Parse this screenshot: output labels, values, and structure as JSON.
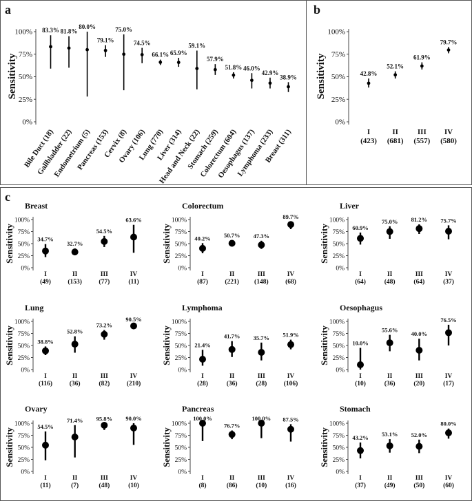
{
  "panel_letters": {
    "a": "a",
    "b": "b",
    "c": "c"
  },
  "colors": {
    "mark": "#000000",
    "border": "#555555",
    "axis": "#555555"
  },
  "chart_data": [
    {
      "id": "a",
      "type": "scatter",
      "error_bars": true,
      "title": "",
      "xlabel": "",
      "ylabel": "Sensitivity",
      "ylim": [
        0,
        100
      ],
      "yticks": [
        "0%",
        "25%",
        "50%",
        "75%",
        "100%"
      ],
      "categories": [
        "Bile Duct (18)",
        "Gallbladder (22)",
        "Endometrium (5)",
        "Pancreas (153)",
        "Cervix (8)",
        "Ovary (106)",
        "Lung (770)",
        "Liver (314)",
        "Head and Neck (22)",
        "Stomach (259)",
        "Colorectum (604)",
        "Oesophagus (137)",
        "Lymphoma (233)",
        "Breast (311)"
      ],
      "labels": [
        "83.3%",
        "81.8%",
        "80.0%",
        "79.1%",
        "75.0%",
        "74.5%",
        "66.1%",
        "65.9%",
        "59.1%",
        "57.9%",
        "51.8%",
        "46.0%",
        "42.9%",
        "38.9%"
      ],
      "values": [
        83.3,
        81.8,
        80.0,
        79.1,
        75.0,
        74.5,
        66.1,
        65.9,
        59.1,
        57.9,
        51.8,
        46.0,
        42.9,
        38.9
      ],
      "lower": [
        59,
        60,
        28,
        72,
        35,
        65,
        63,
        61,
        36,
        52,
        48,
        37,
        37,
        33
      ],
      "upper": [
        96,
        95,
        100,
        85,
        97,
        82,
        69,
        71,
        79,
        64,
        55,
        54,
        49,
        44
      ]
    },
    {
      "id": "b",
      "type": "scatter",
      "error_bars": true,
      "title": "",
      "xlabel": "",
      "ylabel": "Sensitivity",
      "ylim": [
        0,
        100
      ],
      "yticks": [
        "0%",
        "25%",
        "50%",
        "75%",
        "100%"
      ],
      "categories": [
        "I",
        "II",
        "III",
        "IV"
      ],
      "counts": [
        "(423)",
        "(681)",
        "(557)",
        "(580)"
      ],
      "labels": [
        "42.8%",
        "52.1%",
        "61.9%",
        "79.7%"
      ],
      "values": [
        42.8,
        52.1,
        61.9,
        79.7
      ],
      "lower": [
        38,
        48,
        58,
        76
      ],
      "upper": [
        48,
        56,
        66,
        83
      ]
    },
    {
      "id": "c-breast",
      "type": "scatter",
      "error_bars": true,
      "title": "Breast",
      "ylabel": "Sensitivity",
      "ylim": [
        0,
        100
      ],
      "yticks": [
        "0%",
        "25%",
        "50%",
        "75%",
        "100%"
      ],
      "categories": [
        "I",
        "II",
        "III",
        "IV"
      ],
      "counts": [
        "(49)",
        "(153)",
        "(77)",
        "(11)"
      ],
      "labels": [
        "34.7%",
        "32.7%",
        "54.5%",
        "63.6%"
      ],
      "values": [
        34.7,
        32.7,
        54.5,
        63.6
      ],
      "lower": [
        22,
        26,
        43,
        31
      ],
      "upper": [
        49,
        40,
        66,
        89
      ]
    },
    {
      "id": "c-colorectum",
      "type": "scatter",
      "error_bars": true,
      "title": "Colorectum",
      "ylabel": "Sensitivity",
      "ylim": [
        0,
        100
      ],
      "yticks": [
        "0%",
        "25%",
        "50%",
        "75%",
        "100%"
      ],
      "categories": [
        "I",
        "II",
        "III",
        "IV"
      ],
      "counts": [
        "(87)",
        "(221)",
        "(148)",
        "(68)"
      ],
      "labels": [
        "40.2%",
        "50.7%",
        "47.3%",
        "89.7%"
      ],
      "values": [
        40.2,
        50.7,
        47.3,
        89.7
      ],
      "lower": [
        30,
        44,
        39,
        80
      ],
      "upper": [
        51,
        57,
        56,
        96
      ]
    },
    {
      "id": "c-liver",
      "type": "scatter",
      "error_bars": true,
      "title": "Liver",
      "ylabel": "Sensitivity",
      "ylim": [
        0,
        100
      ],
      "yticks": [
        "0%",
        "25%",
        "50%",
        "75%",
        "100%"
      ],
      "categories": [
        "I",
        "II",
        "III",
        "IV"
      ],
      "counts": [
        "(64)",
        "(48)",
        "(64)",
        "(37)"
      ],
      "labels": [
        "60.9%",
        "75.0%",
        "81.2%",
        "75.7%"
      ],
      "values": [
        60.9,
        75.0,
        81.2,
        75.7
      ],
      "lower": [
        48,
        60,
        70,
        59
      ],
      "upper": [
        73,
        86,
        90,
        88
      ]
    },
    {
      "id": "c-lung",
      "type": "scatter",
      "error_bars": true,
      "title": "Lung",
      "ylabel": "Sensitivity",
      "ylim": [
        0,
        100
      ],
      "yticks": [
        "0%",
        "25%",
        "50%",
        "75%",
        "100%"
      ],
      "categories": [
        "I",
        "II",
        "III",
        "IV"
      ],
      "counts": [
        "(116)",
        "(36)",
        "(82)",
        "(210)"
      ],
      "labels": [
        "38.8%",
        "52.8%",
        "73.2%",
        "90.5%"
      ],
      "values": [
        38.8,
        52.8,
        73.2,
        90.5
      ],
      "lower": [
        30,
        35,
        62,
        86
      ],
      "upper": [
        48,
        69,
        82,
        94
      ]
    },
    {
      "id": "c-lymphoma",
      "type": "scatter",
      "error_bars": true,
      "title": "Lymphoma",
      "ylabel": "Sensitivity",
      "ylim": [
        0,
        100
      ],
      "yticks": [
        "0%",
        "25%",
        "50%",
        "75%",
        "100%"
      ],
      "categories": [
        "I",
        "II",
        "III",
        "IV"
      ],
      "counts": [
        "(28)",
        "(36)",
        "(28)",
        "(106)"
      ],
      "labels": [
        "21.4%",
        "41.7%",
        "35.7%",
        "51.9%"
      ],
      "values": [
        21.4,
        41.7,
        35.7,
        51.9
      ],
      "lower": [
        8,
        26,
        19,
        42
      ],
      "upper": [
        41,
        59,
        56,
        62
      ]
    },
    {
      "id": "c-oesophagus",
      "type": "scatter",
      "error_bars": true,
      "title": "Oesophagus",
      "ylabel": "Sensitivity",
      "ylim": [
        0,
        100
      ],
      "yticks": [
        "0%",
        "25%",
        "50%",
        "75%",
        "100%"
      ],
      "categories": [
        "I",
        "II",
        "III",
        "IV"
      ],
      "counts": [
        "(10)",
        "(36)",
        "(20)",
        "(17)"
      ],
      "labels": [
        "10.0%",
        "55.6%",
        "40.0%",
        "76.5%"
      ],
      "values": [
        10.0,
        55.6,
        40.0,
        76.5
      ],
      "lower": [
        0,
        38,
        19,
        50
      ],
      "upper": [
        45,
        72,
        64,
        93
      ]
    },
    {
      "id": "c-ovary",
      "type": "scatter",
      "error_bars": true,
      "title": "Ovary",
      "ylabel": "Sensitivity",
      "ylim": [
        0,
        100
      ],
      "yticks": [
        "0%",
        "25%",
        "50%",
        "75%",
        "100%"
      ],
      "categories": [
        "I",
        "II",
        "III",
        "IV"
      ],
      "counts": [
        "(11)",
        "(7)",
        "(48)",
        "(10)"
      ],
      "labels": [
        "54.5%",
        "71.4%",
        "95.8%",
        "90.0%"
      ],
      "values": [
        54.5,
        71.4,
        95.8,
        90.0
      ],
      "lower": [
        23,
        29,
        86,
        55
      ],
      "upper": [
        83,
        96,
        99,
        100
      ]
    },
    {
      "id": "c-pancreas",
      "type": "scatter",
      "error_bars": true,
      "title": "Pancreas",
      "ylabel": "Sensitivity",
      "ylim": [
        0,
        100
      ],
      "yticks": [
        "0%",
        "25%",
        "50%",
        "75%",
        "100%"
      ],
      "categories": [
        "I",
        "II",
        "III",
        "IV"
      ],
      "counts": [
        "(8)",
        "(86)",
        "(10)",
        "(16)"
      ],
      "labels": [
        "100.0%",
        "76.7%",
        "100.0%",
        "87.5%"
      ],
      "values": [
        100.0,
        76.7,
        100.0,
        87.5
      ],
      "lower": [
        63,
        67,
        69,
        62
      ],
      "upper": [
        100,
        85,
        100,
        98
      ]
    },
    {
      "id": "c-stomach",
      "type": "scatter",
      "error_bars": true,
      "title": "Stomach",
      "ylabel": "Sensitivity",
      "ylim": [
        0,
        100
      ],
      "yticks": [
        "0%",
        "25%",
        "50%",
        "75%",
        "100%"
      ],
      "categories": [
        "I",
        "II",
        "III",
        "IV"
      ],
      "counts": [
        "(37)",
        "(49)",
        "(50)",
        "(60)"
      ],
      "labels": [
        "43.2%",
        "53.1%",
        "52.0%",
        "80.0%"
      ],
      "values": [
        43.2,
        53.1,
        52.0,
        80.0
      ],
      "lower": [
        27,
        39,
        38,
        68
      ],
      "upper": [
        60,
        67,
        66,
        89
      ]
    }
  ]
}
